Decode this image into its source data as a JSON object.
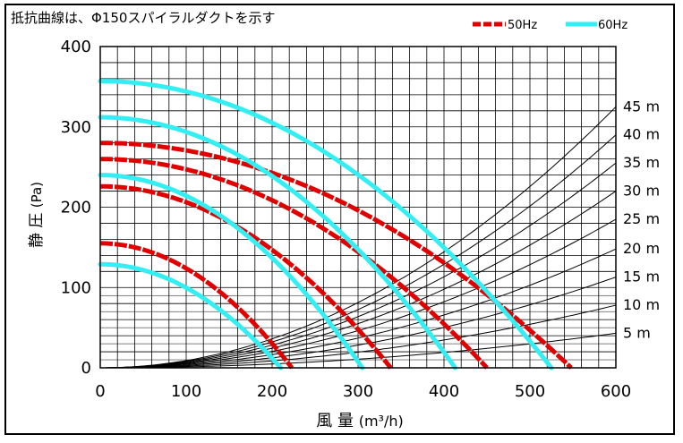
{
  "chart_data": {
    "type": "line",
    "title": "抵抗曲線は、Φ150スパイラルダクトを示す",
    "xlabel": "風 量",
    "xunit": "m³/h",
    "ylabel": "静 圧",
    "yunit": "Pa",
    "xlim": [
      0,
      600
    ],
    "ylim": [
      0,
      400
    ],
    "x_ticks": [
      "0",
      "100",
      "200",
      "300",
      "400",
      "500",
      "600"
    ],
    "y_ticks": [
      "0",
      "100",
      "200",
      "300",
      "400"
    ],
    "grid": true,
    "legend": {
      "position": "top-right",
      "entries": [
        {
          "label": "50Hz",
          "color": "#e00000",
          "style": "dashed"
        },
        {
          "label": "60Hz",
          "color": "#33eef2",
          "style": "solid"
        }
      ]
    },
    "fan_curves": [
      {
        "freq": "50Hz",
        "color": "#e00000",
        "max_pressure": 155,
        "max_flow": 223
      },
      {
        "freq": "50Hz",
        "color": "#e00000",
        "max_pressure": 226,
        "max_flow": 338
      },
      {
        "freq": "50Hz",
        "color": "#e00000",
        "max_pressure": 260,
        "max_flow": 450
      },
      {
        "freq": "50Hz",
        "color": "#e00000",
        "max_pressure": 280,
        "max_flow": 548
      },
      {
        "freq": "60Hz",
        "color": "#33eef2",
        "max_pressure": 129,
        "max_flow": 210
      },
      {
        "freq": "60Hz",
        "color": "#33eef2",
        "max_pressure": 240,
        "max_flow": 305
      },
      {
        "freq": "60Hz",
        "color": "#33eef2",
        "max_pressure": 312,
        "max_flow": 413
      },
      {
        "freq": "60Hz",
        "color": "#33eef2",
        "max_pressure": 357,
        "max_flow": 525
      }
    ],
    "resistance_curves": [
      {
        "label": "45 m",
        "pressure_at_600": 325
      },
      {
        "label": "40 m",
        "pressure_at_600": 290
      },
      {
        "label": "35 m",
        "pressure_at_600": 255
      },
      {
        "label": "30 m",
        "pressure_at_600": 220
      },
      {
        "label": "25 m",
        "pressure_at_600": 185
      },
      {
        "label": "20 m",
        "pressure_at_600": 148
      },
      {
        "label": "15 m",
        "pressure_at_600": 113
      },
      {
        "label": "10 m",
        "pressure_at_600": 78
      },
      {
        "label": "5 m",
        "pressure_at_600": 43
      }
    ]
  }
}
